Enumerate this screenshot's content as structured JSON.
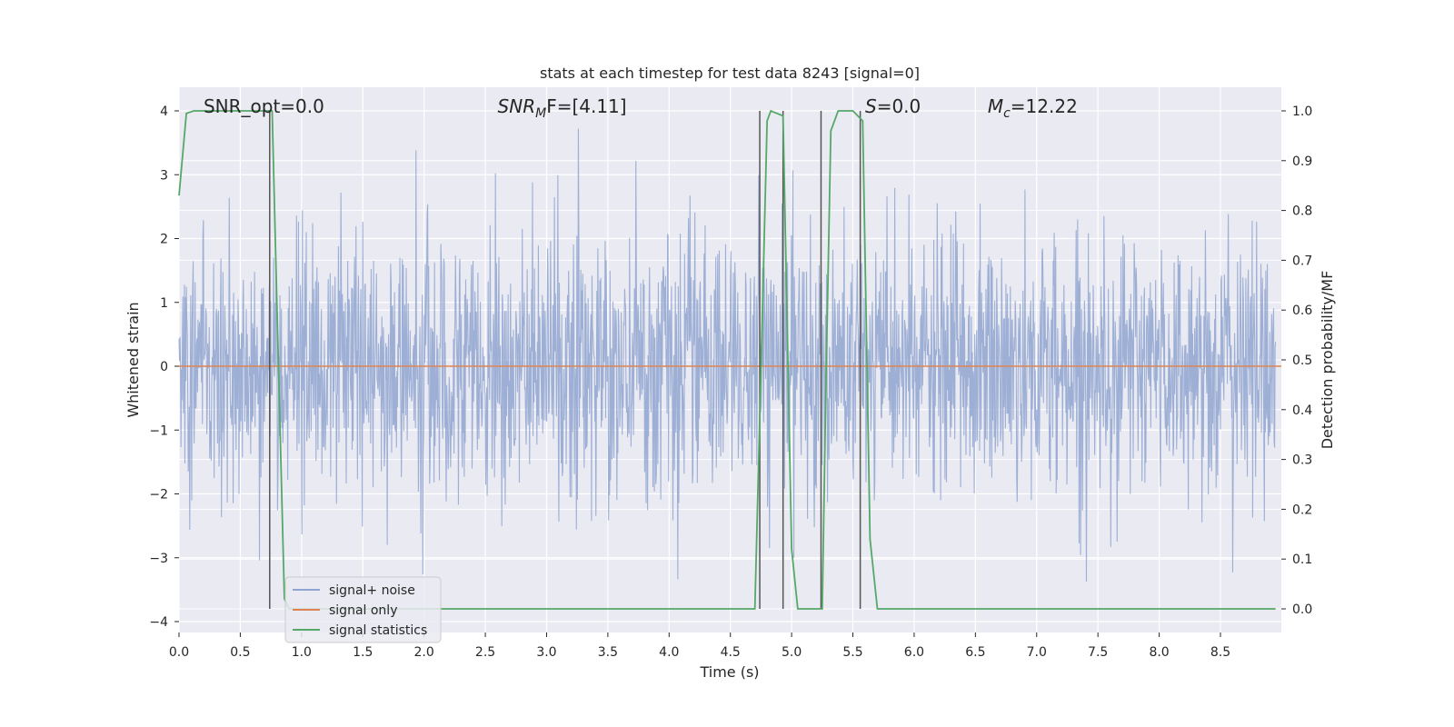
{
  "chart_data": {
    "type": "line",
    "title": "stats at each timestep for test data 8243 [signal=0]",
    "xlabel": "Time (s)",
    "ylabel": "Whitened strain",
    "y2label": "Detection probability/MF",
    "xlim": [
      0.0,
      9.0
    ],
    "ylim": [
      -4.2,
      4.4
    ],
    "y2lim": [
      -0.05,
      1.05
    ],
    "xticks": [
      "0.0",
      "0.5",
      "1.0",
      "1.5",
      "2.0",
      "2.5",
      "3.0",
      "3.5",
      "4.0",
      "4.5",
      "5.0",
      "5.5",
      "6.0",
      "6.5",
      "7.0",
      "7.5",
      "8.0",
      "8.5"
    ],
    "yticks": [
      "4",
      "3",
      "2",
      "1",
      "0",
      "−1",
      "−2",
      "−3",
      "−4"
    ],
    "y2ticks": [
      "1.0",
      "0.9",
      "0.8",
      "0.7",
      "0.6",
      "0.5",
      "0.4",
      "0.3",
      "0.2",
      "0.1",
      "0.0"
    ],
    "grid": true,
    "legend_position": "lower-left",
    "annotations": [
      {
        "text": "SNR_opt=0.0",
        "x": 0.2
      },
      {
        "text": "SNR",
        "sub": "M",
        "tail": "F=[4.11]",
        "x": 2.6
      },
      {
        "text": "S",
        "tail": "=0.0",
        "x": 5.6
      },
      {
        "text": "M",
        "sub": "c",
        "tail": "=12.22",
        "x": 6.6
      }
    ],
    "series": [
      {
        "name": "signal+ noise",
        "color": "#8fa5d0",
        "axis": "left",
        "description_stat": "whitened noise, std ~1, range approx -3.8 to 3.8"
      },
      {
        "name": "signal only",
        "color": "#dd8452",
        "axis": "left",
        "values_constant": 0.0
      },
      {
        "name": "signal statistics",
        "color": "#55a868",
        "axis": "right",
        "points": [
          [
            0.0,
            0.83
          ],
          [
            0.06,
            0.995
          ],
          [
            0.12,
            1.0
          ],
          [
            0.7,
            1.0
          ],
          [
            0.73,
            1.0
          ],
          [
            0.76,
            1.0
          ],
          [
            0.8,
            0.6
          ],
          [
            0.86,
            0.02
          ],
          [
            0.9,
            0.0
          ],
          [
            4.7,
            0.0
          ],
          [
            4.75,
            0.48
          ],
          [
            4.8,
            0.98
          ],
          [
            4.83,
            1.0
          ],
          [
            4.93,
            0.99
          ],
          [
            5.0,
            0.12
          ],
          [
            5.05,
            0.0
          ],
          [
            5.25,
            0.0
          ],
          [
            5.28,
            0.45
          ],
          [
            5.32,
            0.96
          ],
          [
            5.38,
            1.0
          ],
          [
            5.5,
            1.0
          ],
          [
            5.58,
            0.98
          ],
          [
            5.64,
            0.14
          ],
          [
            5.7,
            0.0
          ],
          [
            5.85,
            0.0
          ],
          [
            8.95,
            0.0
          ]
        ]
      }
    ],
    "vlines": [
      0.74,
      4.74,
      4.93,
      5.24,
      5.56
    ],
    "vline_color": "#555555"
  }
}
